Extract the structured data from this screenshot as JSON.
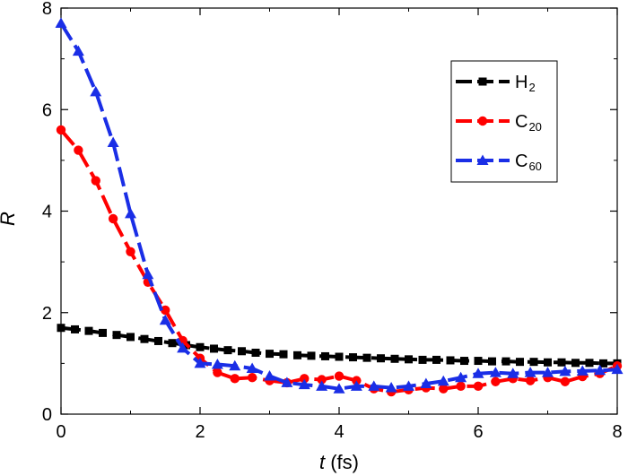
{
  "chart_data": {
    "type": "line",
    "title": "",
    "xlabel": {
      "var": "t",
      "unit": " (fs)"
    },
    "ylabel": "R",
    "xlim": [
      0,
      8
    ],
    "ylim": [
      0,
      8
    ],
    "xticks": [
      0,
      2,
      4,
      6,
      8
    ],
    "yticks": [
      0,
      2,
      4,
      6,
      8
    ],
    "grid": false,
    "legend_placement": "top-right",
    "series": [
      {
        "name": "H",
        "subscript": "2",
        "color": "#000000",
        "marker": "square",
        "x": [
          0,
          0.2,
          0.4,
          0.6,
          0.8,
          1.0,
          1.2,
          1.4,
          1.6,
          1.8,
          2.0,
          2.2,
          2.4,
          2.6,
          2.8,
          3.0,
          3.2,
          3.4,
          3.6,
          3.8,
          4.0,
          4.2,
          4.4,
          4.6,
          4.8,
          5.0,
          5.2,
          5.4,
          5.6,
          5.8,
          6.0,
          6.2,
          6.4,
          6.6,
          6.8,
          7.0,
          7.2,
          7.4,
          7.6,
          7.8,
          8.0
        ],
        "y": [
          1.7,
          1.67,
          1.64,
          1.6,
          1.56,
          1.52,
          1.48,
          1.44,
          1.4,
          1.36,
          1.32,
          1.29,
          1.26,
          1.24,
          1.21,
          1.19,
          1.18,
          1.16,
          1.15,
          1.14,
          1.13,
          1.12,
          1.11,
          1.1,
          1.09,
          1.08,
          1.07,
          1.07,
          1.06,
          1.05,
          1.05,
          1.04,
          1.04,
          1.03,
          1.03,
          1.02,
          1.02,
          1.01,
          1.01,
          1.0,
          1.0
        ]
      },
      {
        "name": "C",
        "subscript": "20",
        "color": "#ff0000",
        "marker": "circle",
        "x": [
          0,
          0.25,
          0.5,
          0.75,
          1.0,
          1.25,
          1.5,
          1.75,
          2.0,
          2.25,
          2.5,
          2.75,
          3.0,
          3.25,
          3.5,
          3.75,
          4.0,
          4.25,
          4.5,
          4.75,
          5.0,
          5.25,
          5.5,
          5.75,
          6.0,
          6.25,
          6.5,
          6.75,
          7.0,
          7.25,
          7.5,
          7.75,
          8.0
        ],
        "y": [
          5.6,
          5.2,
          4.6,
          3.85,
          3.2,
          2.6,
          2.05,
          1.45,
          1.1,
          0.82,
          0.7,
          0.72,
          0.66,
          0.62,
          0.7,
          0.68,
          0.75,
          0.66,
          0.5,
          0.44,
          0.48,
          0.52,
          0.5,
          0.55,
          0.55,
          0.64,
          0.7,
          0.66,
          0.72,
          0.64,
          0.74,
          0.8,
          0.95
        ]
      },
      {
        "name": "C",
        "subscript": "60",
        "color": "#1a2ee6",
        "marker": "triangle",
        "x": [
          0,
          0.25,
          0.5,
          0.75,
          1.0,
          1.25,
          1.5,
          1.75,
          2.0,
          2.25,
          2.5,
          2.75,
          3.0,
          3.25,
          3.5,
          3.75,
          4.0,
          4.25,
          4.5,
          4.75,
          5.0,
          5.25,
          5.5,
          5.75,
          6.0,
          6.25,
          6.5,
          6.75,
          7.0,
          7.25,
          7.5,
          7.75,
          8.0
        ],
        "y": [
          7.7,
          7.15,
          6.35,
          5.35,
          3.95,
          2.75,
          1.85,
          1.3,
          1.0,
          0.98,
          0.95,
          0.9,
          0.75,
          0.62,
          0.58,
          0.55,
          0.5,
          0.55,
          0.55,
          0.52,
          0.55,
          0.6,
          0.65,
          0.72,
          0.8,
          0.82,
          0.8,
          0.82,
          0.82,
          0.84,
          0.85,
          0.86,
          0.88
        ]
      }
    ]
  }
}
